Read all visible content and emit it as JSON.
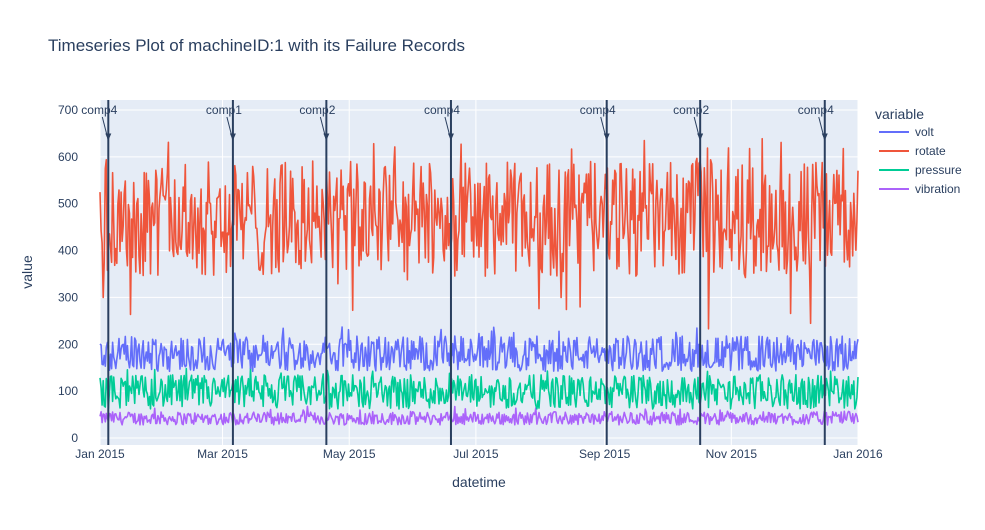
{
  "chart_data": {
    "type": "line",
    "title": "Timeseries Plot of machineID:1 with its Failure Records",
    "xlabel": "datetime",
    "ylabel": "value",
    "x_range": [
      "2015-01-01",
      "2016-01-01"
    ],
    "ylim": [
      0,
      710
    ],
    "y_ticks": [
      0,
      100,
      200,
      300,
      400,
      500,
      600,
      700
    ],
    "x_ticks": [
      {
        "date": "2015-01-01",
        "label": "Jan 2015"
      },
      {
        "date": "2015-03-01",
        "label": "Mar 2015"
      },
      {
        "date": "2015-05-01",
        "label": "May 2015"
      },
      {
        "date": "2015-07-01",
        "label": "Jul 2015"
      },
      {
        "date": "2015-09-01",
        "label": "Sep 2015"
      },
      {
        "date": "2015-11-01",
        "label": "Nov 2015"
      },
      {
        "date": "2016-01-01",
        "label": "Jan 2016"
      }
    ],
    "grid": true,
    "legend_title": "variable",
    "legend_position": "right",
    "series": [
      {
        "name": "volt",
        "color": "#636efa",
        "mean": 171,
        "spread_low": 142,
        "spread_high": 218,
        "max": 240
      },
      {
        "name": "rotate",
        "color": "#ef553b",
        "mean": 450,
        "spread_low": 345,
        "spread_high": 590,
        "min": 232,
        "max": 640
      },
      {
        "name": "pressure",
        "color": "#00cc96",
        "mean": 100,
        "spread_low": 62,
        "spread_high": 135,
        "max": 150
      },
      {
        "name": "vibration",
        "color": "#ab63fa",
        "mean": 40,
        "spread_low": 28,
        "spread_high": 56,
        "max": 68
      }
    ],
    "failures": [
      {
        "date": "2015-01-05",
        "label": "comp4"
      },
      {
        "date": "2015-03-06",
        "label": "comp1"
      },
      {
        "date": "2015-04-20",
        "label": "comp2"
      },
      {
        "date": "2015-06-19",
        "label": "comp4"
      },
      {
        "date": "2015-09-02",
        "label": "comp4"
      },
      {
        "date": "2015-10-17",
        "label": "comp2"
      },
      {
        "date": "2015-12-16",
        "label": "comp4"
      }
    ],
    "annotation_y": 635,
    "failure_line_color": "#2a3f5f"
  }
}
